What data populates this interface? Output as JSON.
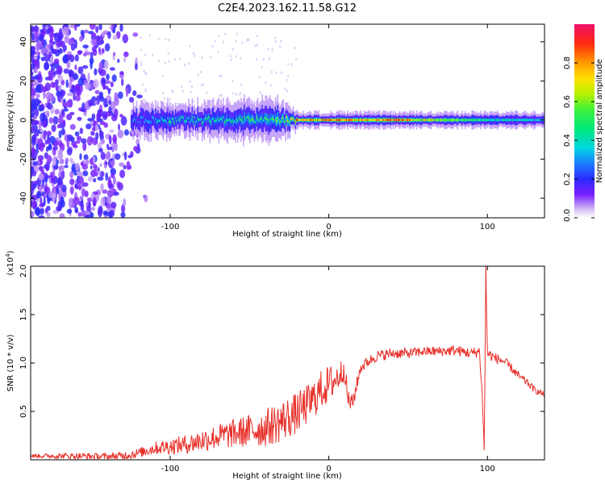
{
  "title": "C2E4.2023.162.11.58.G12",
  "chart_data": [
    {
      "type": "heatmap",
      "panel": "top",
      "xlabel": "Height of straight line (km)",
      "ylabel": "Frequency (Hz)",
      "xlim": [
        -188,
        136
      ],
      "ylim": [
        -50,
        49
      ],
      "xticks": [
        -100,
        0,
        100
      ],
      "xtick_labels": [
        "-100",
        "0",
        "100"
      ],
      "yticks": [
        40,
        20,
        0,
        -20,
        -40
      ],
      "ytick_labels": [
        "40",
        "20",
        "0",
        "-20",
        "-40"
      ],
      "colorbar": {
        "label": "Normalized spectral amplitude",
        "range": [
          0,
          1
        ],
        "ticks": [
          0,
          0.2,
          0.4,
          0.6,
          0.8
        ],
        "tick_labels": [
          "0.0",
          "0.2",
          "0.4",
          "0.6",
          "0.8"
        ]
      },
      "description_note": "",
      "band": [
        {
          "x": -188,
          "noise_density": 1.0
        },
        {
          "x": -135,
          "noise_density": 0.9
        },
        {
          "x": -125,
          "center": 0,
          "halfwidth": 4,
          "amp": 0.3
        },
        {
          "x": -100,
          "center": 0,
          "halfwidth": 4,
          "amp": 0.45
        },
        {
          "x": -60,
          "center": 0,
          "halfwidth": 5,
          "amp": 0.5
        },
        {
          "x": -30,
          "center": 0,
          "halfwidth": 5,
          "amp": 0.6
        },
        {
          "x": -20,
          "center": 0,
          "halfwidth": 2,
          "amp": 0.85
        },
        {
          "x": 0,
          "center": 0,
          "halfwidth": 2,
          "amp": 0.85
        },
        {
          "x": 40,
          "center": 0,
          "halfwidth": 2,
          "amp": 0.9
        },
        {
          "x": 80,
          "center": 0,
          "halfwidth": 2,
          "amp": 0.6
        },
        {
          "x": 100,
          "center": 0,
          "halfwidth": 2,
          "amp": 0.45
        },
        {
          "x": 136,
          "center": 0,
          "halfwidth": 2,
          "amp": 0.4
        }
      ]
    },
    {
      "type": "line",
      "panel": "bottom",
      "xlabel": "Height of straight line (km)",
      "ylabel": "SNR (10 * v/v)",
      "yscale_label": "(x10^4)",
      "yscale_base": "(x10",
      "yscale_exp": "4",
      "yscale_close": ")",
      "xlim": [
        -188,
        136
      ],
      "ylim": [
        0,
        2.0
      ],
      "xticks": [
        -100,
        0,
        100
      ],
      "xtick_labels": [
        "-100",
        "0",
        "100"
      ],
      "yticks": [
        0.5,
        1.0,
        1.5,
        2.0
      ],
      "ytick_labels": [
        "0.5",
        "1.0",
        "1.5",
        "2.0"
      ],
      "color": "#e8302a",
      "series": [
        {
          "x": [
            -188,
            -160,
            -140,
            -130,
            -120,
            -110,
            -100,
            -90,
            -80,
            -70,
            -60,
            -50,
            -40,
            -30,
            -20,
            -15,
            -10,
            -5,
            0,
            5,
            8,
            10,
            12,
            15,
            20,
            25,
            30,
            40,
            50,
            60,
            70,
            80,
            90,
            95,
            97,
            98,
            99,
            100,
            105,
            110,
            115,
            120,
            125,
            130,
            136
          ],
          "y": [
            0.04,
            0.04,
            0.03,
            0.04,
            0.07,
            0.12,
            0.14,
            0.16,
            0.2,
            0.24,
            0.27,
            0.3,
            0.33,
            0.4,
            0.48,
            0.55,
            0.62,
            0.72,
            0.78,
            0.84,
            0.9,
            0.95,
            0.62,
            0.58,
            0.95,
            1.02,
            1.07,
            1.1,
            1.1,
            1.12,
            1.12,
            1.13,
            1.1,
            1.12,
            0.6,
            0.05,
            2.0,
            1.1,
            1.05,
            1.02,
            0.95,
            0.86,
            0.8,
            0.72,
            0.67
          ]
        }
      ],
      "noise_amplitude": [
        {
          "x": -188,
          "amp": 0.02
        },
        {
          "x": -120,
          "amp": 0.05
        },
        {
          "x": -60,
          "amp": 0.15
        },
        {
          "x": -30,
          "amp": 0.22
        },
        {
          "x": 0,
          "amp": 0.2
        },
        {
          "x": 20,
          "amp": 0.06
        },
        {
          "x": 60,
          "amp": 0.05
        },
        {
          "x": 100,
          "amp": 0.06
        },
        {
          "x": 136,
          "amp": 0.03
        }
      ]
    }
  ]
}
